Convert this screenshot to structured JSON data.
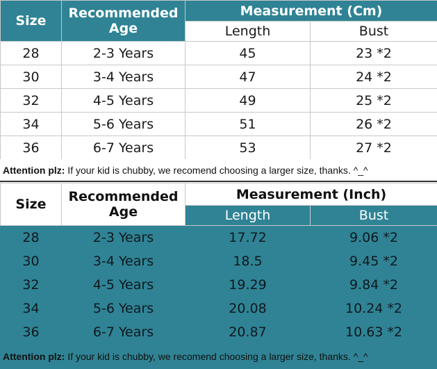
{
  "cm_table": {
    "size_header": "Size",
    "age_header": "Recommended Age",
    "measure_header": "Measurement (Cm)",
    "length_header": "Length",
    "bust_header": "Bust",
    "rows": [
      {
        "size": "28",
        "age": "2-3 Years",
        "length": "45",
        "bust": "23 *2"
      },
      {
        "size": "30",
        "age": "3-4 Years",
        "length": "47",
        "bust": "24 *2"
      },
      {
        "size": "32",
        "age": "4-5 Years",
        "length": "49",
        "bust": "25 *2"
      },
      {
        "size": "34",
        "age": "5-6 Years",
        "length": "51",
        "bust": "26 *2"
      },
      {
        "size": "36",
        "age": "6-7 Years",
        "length": "53",
        "bust": "27 *2"
      }
    ],
    "note_label": "Attention plz:",
    "note_text": " If your kid is chubby, we recomend choosing a larger size, thanks. ^_^"
  },
  "inch_table": {
    "size_header": "Size",
    "age_header": "Recommended Age",
    "measure_header": "Measurement (Inch)",
    "length_header": "Length",
    "bust_header": "Bust",
    "rows": [
      {
        "size": "28",
        "age": "2-3 Years",
        "length": "17.72",
        "bust": "9.06 *2"
      },
      {
        "size": "30",
        "age": "3-4 Years",
        "length": "18.5",
        "bust": "9.45 *2"
      },
      {
        "size": "32",
        "age": "4-5 Years",
        "length": "19.29",
        "bust": "9.84 *2"
      },
      {
        "size": "34",
        "age": "5-6 Years",
        "length": "20.08",
        "bust": "10.24 *2"
      },
      {
        "size": "36",
        "age": "6-7 Years",
        "length": "20.87",
        "bust": "10.63 *2"
      }
    ],
    "note_label": "Attention plz:",
    "note_text": " If your kid is chubby, we recomend choosing a larger size, thanks. ^_^"
  },
  "colors": {
    "accent": "#2f8394",
    "background": "#ffffff"
  }
}
